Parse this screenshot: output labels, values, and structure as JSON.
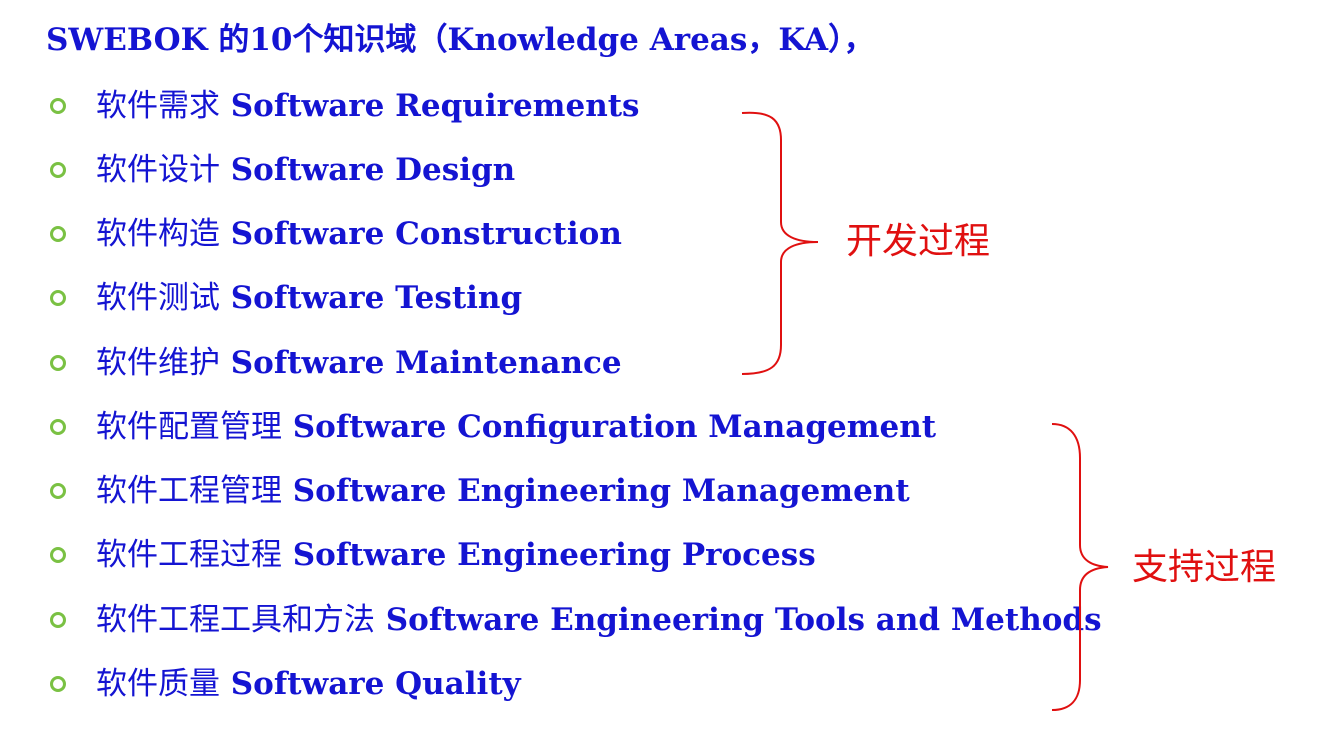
{
  "title": "SWEBOK 的10个知识域（Knowledge Areas，KA），",
  "items": [
    {
      "zh": "软件需求",
      "en": "Software Requirements"
    },
    {
      "zh": "软件设计",
      "en": "Software Design"
    },
    {
      "zh": "软件构造",
      "en": "Software Construction"
    },
    {
      "zh": "软件测试",
      "en": "Software Testing"
    },
    {
      "zh": "软件维护",
      "en": "Software Maintenance"
    },
    {
      "zh": "软件配置管理",
      "en": "Software Configuration Management"
    },
    {
      "zh": "软件工程管理",
      "en": "Software Engineering Management"
    },
    {
      "zh": "软件工程过程",
      "en": "Software Engineering Process"
    },
    {
      "zh": "软件工程工具和方法",
      "en": "Software Engineering Tools and Methods"
    },
    {
      "zh": "软件质量",
      "en": "Software Quality"
    }
  ],
  "groups": {
    "development": {
      "label": "开发过程"
    },
    "support": {
      "label": "支持过程"
    }
  },
  "colors": {
    "text": "#1414d2",
    "bullet": "#7ac143",
    "bracket": "#e01010"
  }
}
